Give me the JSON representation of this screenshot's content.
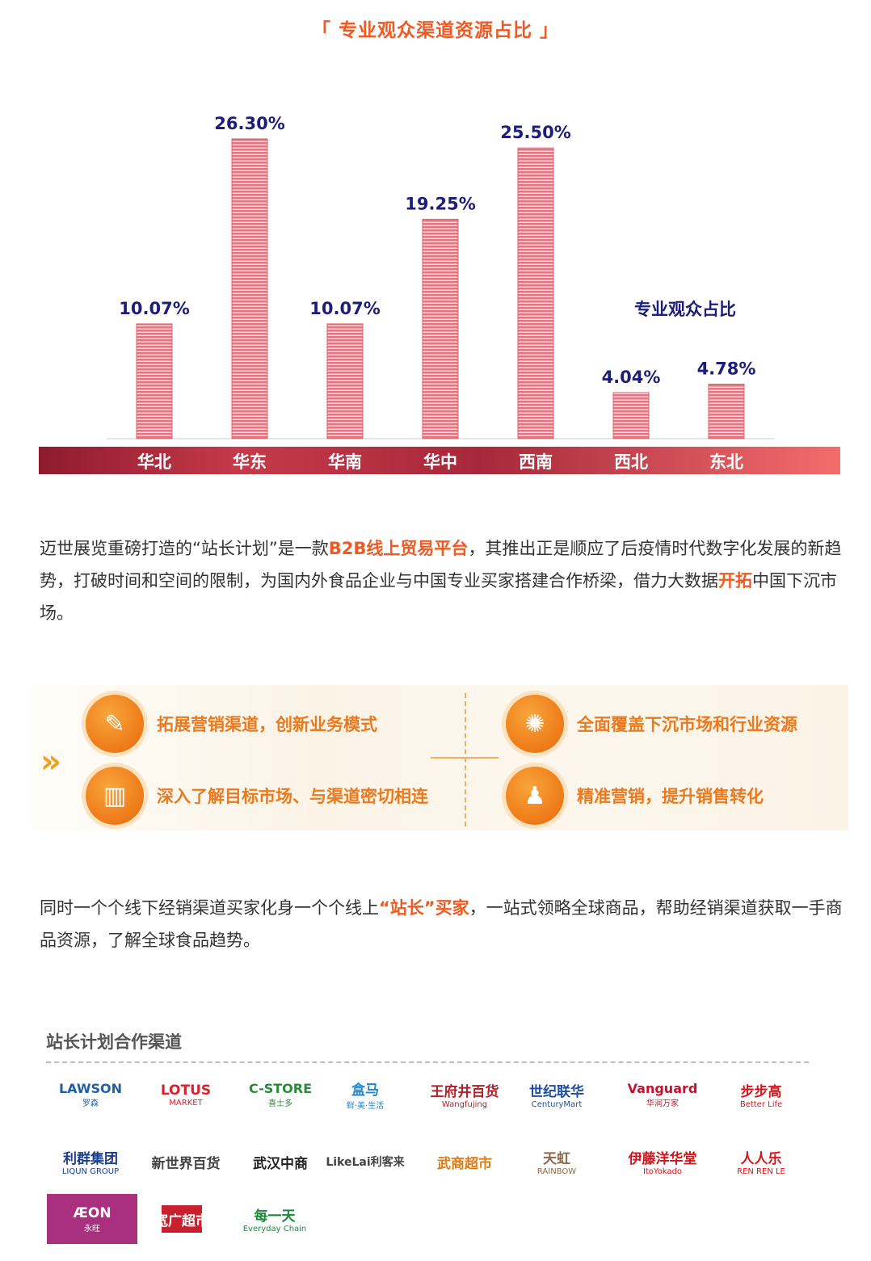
{
  "section_title": "「 专业观众渠道资源占比 」",
  "chart_data": {
    "type": "bar",
    "categories": [
      "华北",
      "华东",
      "华南",
      "华中",
      "西南",
      "西北",
      "东北"
    ],
    "values": [
      10.07,
      26.3,
      10.07,
      19.25,
      25.5,
      4.04,
      4.78
    ],
    "value_labels": [
      "10.07%",
      "26.30%",
      "10.07%",
      "19.25%",
      "25.50%",
      "4.04%",
      "4.78%"
    ],
    "title": "专业观众占比",
    "ylim": [
      0,
      30
    ],
    "grid": false,
    "legend": "none",
    "colors": {
      "bar": "#e07d86",
      "stripe": "#ffffff",
      "label": "#1e1e7a",
      "band_dark": "#9a1e32",
      "band_light": "#f06c6c"
    }
  },
  "paragraph1": {
    "t1": "迈世展览重磅打造的“站长计划”是一款",
    "h1": "B2B线上贸易平台",
    "t2": "，其推出正是顺应了后疫情时代数字化发展的新趋势，打破时间和空间的限制，为国内外食品企业与中国专业买家搭建合作桥梁，借力大数据",
    "h2": "开拓",
    "t3": "中国下沉市场。"
  },
  "features": {
    "chevron": "»",
    "items": [
      {
        "label": "拓展营销渠道，创新业务模式",
        "icon": "marketing-icon",
        "glyph": "✎"
      },
      {
        "label": "深入了解目标市场、与渠道密切相连",
        "icon": "bar-chart-icon",
        "glyph": "▥"
      },
      {
        "label": "全面覆盖下沉市场和行业资源",
        "icon": "network-globe-icon",
        "glyph": "✺"
      },
      {
        "label": "精准营销，提升销售转化",
        "icon": "people-icon",
        "glyph": "♟"
      }
    ]
  },
  "paragraph2": {
    "t1": "同时一个个线下经销渠道买家化身一个个线上",
    "h1": "“站长”买家",
    "t2": "，一站式领略全球商品，帮助经销渠道获取一手商品资源，了解全球食品趋势。"
  },
  "partners": {
    "title": "站长计划合作渠道",
    "logos": [
      {
        "main": "LAWSON",
        "sub": "罗森",
        "color": "#1f5fa8"
      },
      {
        "main": "LOTUS",
        "sub": "MARKET",
        "color": "#d9232e"
      },
      {
        "main": "C-STORE",
        "sub": "喜士多",
        "color": "#2a8a3a"
      },
      {
        "main": "盒马",
        "sub": "鲜·美·生活",
        "color": "#1f86c9"
      },
      {
        "main": "王府井百货",
        "sub": "Wangfujing",
        "color": "#b3202a"
      },
      {
        "main": "世纪联华",
        "sub": "CenturyMart",
        "color": "#1f4fa0"
      },
      {
        "main": "Vanguard",
        "sub": "华润万家",
        "color": "#c8102e"
      },
      {
        "main": "步步高",
        "sub": "Better Life",
        "color": "#d7141a"
      },
      {
        "main": "利群集团",
        "sub": "LIQUN GROUP",
        "color": "#1c3f8c"
      },
      {
        "main": "新世界百货",
        "sub": "",
        "color": "#444444"
      },
      {
        "main": "武汉中商",
        "sub": "",
        "color": "#222222"
      },
      {
        "main": "LikeLai利客来",
        "sub": "",
        "color": "#444444"
      },
      {
        "main": "武商超市",
        "sub": "",
        "color": "#e07a12"
      },
      {
        "main": "天虹",
        "sub": "RAINBOW",
        "color": "#8a6a4a"
      },
      {
        "main": "伊藤洋华堂",
        "sub": "ItoYokado",
        "color": "#d7141a"
      },
      {
        "main": "人人乐",
        "sub": "REN REN LE",
        "color": "#d7141a"
      },
      {
        "main": "ÆON",
        "sub": "永旺",
        "color": "#ffffff"
      },
      {
        "main": "宽广超市",
        "sub": "",
        "color": "#ffffff"
      },
      {
        "main": "每一天",
        "sub": "Everyday Chain",
        "color": "#1a8a3a"
      }
    ]
  }
}
